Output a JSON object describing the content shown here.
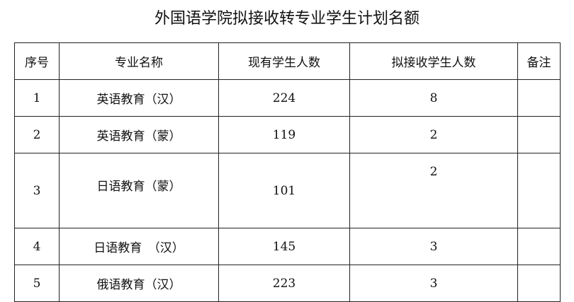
{
  "title": "外国语学院拟接收转专业学生计划名额",
  "headers": [
    "序号",
    "专业名称",
    "现有学生人数",
    "拟接收学生人数",
    "备注"
  ],
  "rows": [
    {
      "no": "1",
      "major": "英语教育（汉）",
      "current": "224",
      "planned": "8",
      "note": ""
    },
    {
      "no": "2",
      "major": "英语教育（蒙）",
      "current": "119",
      "planned": "2",
      "note": ""
    },
    {
      "no": "3",
      "major": "日语教育（蒙）",
      "current": "101",
      "planned": "2",
      "note": ""
    },
    {
      "no": "4",
      "major": "日语教育　（汉）",
      "current": "145",
      "planned": "3",
      "note": ""
    },
    {
      "no": "5",
      "major": "俄语教育（汉）",
      "current": "223",
      "planned": "3",
      "note": ""
    }
  ]
}
